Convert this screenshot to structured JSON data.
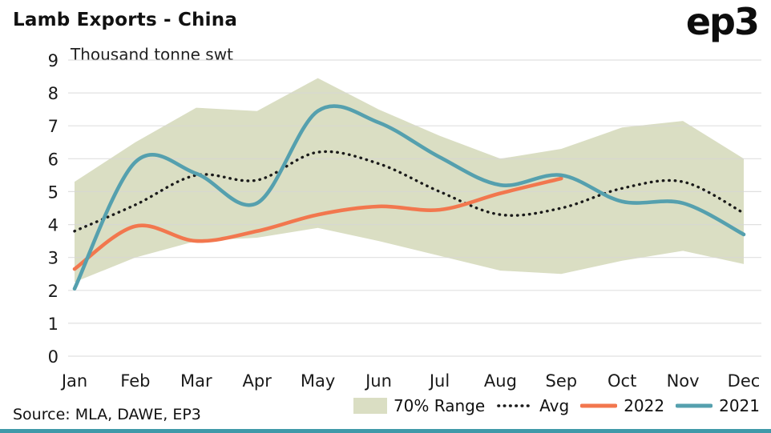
{
  "header": {
    "title": "Lamb Exports - China",
    "unit": "Thousand tonne swt",
    "logo": "ep3"
  },
  "footer": {
    "source": "Source: MLA, DAWE, EP3"
  },
  "legend": {
    "range_label": "70% Range",
    "avg_label": "Avg",
    "y2022_label": "2022",
    "y2021_label": "2021"
  },
  "colors": {
    "band": "#dadec3",
    "avg": "#1a1a1a",
    "y2022": "#f2774e",
    "y2021": "#55a0ae",
    "grid": "#d6d6d6",
    "accent_bottom": "#4099a9"
  },
  "chart_data": {
    "type": "line",
    "title": "Lamb Exports - China",
    "ylabel": "Thousand tonne swt",
    "ylim": [
      0,
      9
    ],
    "yticks": [
      0,
      1,
      2,
      3,
      4,
      5,
      6,
      7,
      8,
      9
    ],
    "grid": "horizontal",
    "legend_position": "bottom",
    "categories": [
      "Jan",
      "Feb",
      "Mar",
      "Apr",
      "May",
      "Jun",
      "Jul",
      "Aug",
      "Sep",
      "Oct",
      "Nov",
      "Dec"
    ],
    "series": [
      {
        "name": "70% Range upper",
        "style": "band-upper",
        "values": [
          5.3,
          6.5,
          7.55,
          7.45,
          8.45,
          7.5,
          6.7,
          6.0,
          6.3,
          6.95,
          7.15,
          6.0
        ]
      },
      {
        "name": "70% Range lower",
        "style": "band-lower",
        "values": [
          2.25,
          3.0,
          3.5,
          3.6,
          3.9,
          3.5,
          3.05,
          2.6,
          2.5,
          2.9,
          3.2,
          2.8
        ]
      },
      {
        "name": "Avg",
        "style": "dotted",
        "values": [
          3.8,
          4.6,
          5.5,
          5.35,
          6.2,
          5.85,
          5.0,
          4.3,
          4.5,
          5.1,
          5.3,
          4.35
        ]
      },
      {
        "name": "2022",
        "style": "solid",
        "values": [
          2.65,
          3.95,
          3.5,
          3.8,
          4.3,
          4.55,
          4.45,
          4.95,
          5.4
        ]
      },
      {
        "name": "2021",
        "style": "solid",
        "values": [
          2.05,
          5.9,
          5.55,
          4.65,
          7.45,
          7.1,
          6.05,
          5.2,
          5.5,
          4.7,
          4.65,
          3.7
        ]
      }
    ]
  }
}
